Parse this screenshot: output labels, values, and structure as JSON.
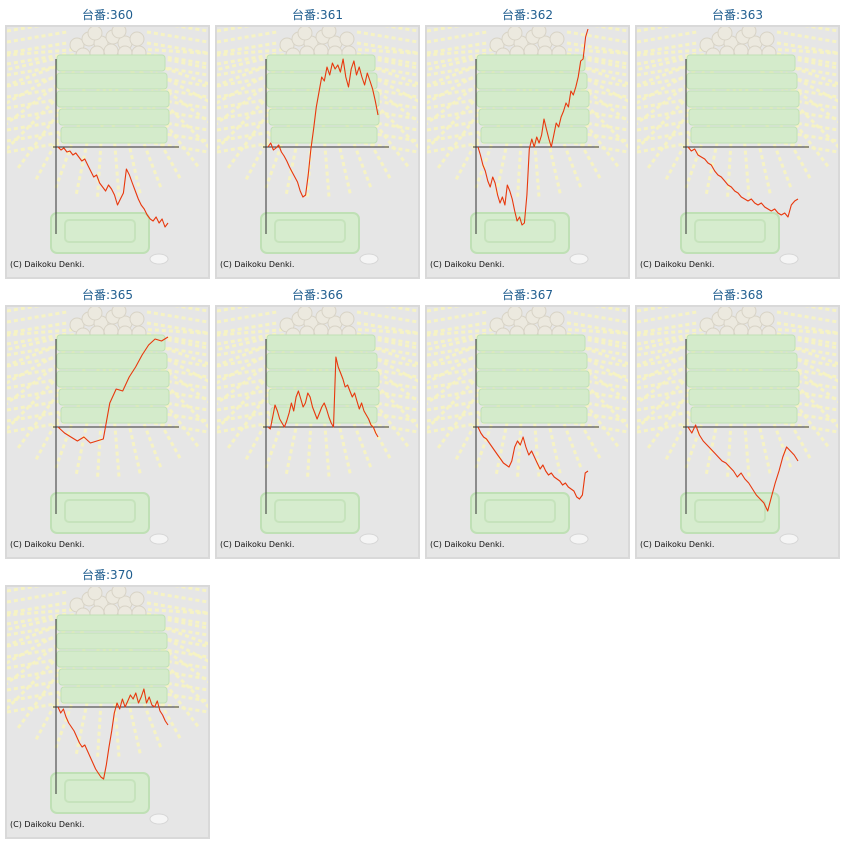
{
  "colors": {
    "title": "#1f5d8f",
    "line": "#e8380d",
    "axis": "#333333",
    "background": "#e6e6e6"
  },
  "copyright": "(C) Daikoku Denki.",
  "chart_data": [
    {
      "type": "line",
      "title": "台番:360",
      "y": [
        0,
        3,
        1,
        5,
        4,
        8,
        6,
        10,
        14,
        12,
        18,
        24,
        30,
        28,
        36,
        40,
        44,
        38,
        42,
        48,
        58,
        52,
        46,
        22,
        28,
        36,
        44,
        52,
        58,
        62,
        68,
        72,
        74,
        70,
        76,
        72,
        80,
        76
      ]
    },
    {
      "type": "line",
      "title": "台番:361",
      "y": [
        0,
        -4,
        3,
        1,
        -2,
        5,
        9,
        14,
        20,
        25,
        30,
        35,
        44,
        50,
        48,
        28,
        2,
        -18,
        -40,
        -55,
        -70,
        -66,
        -80,
        -72,
        -84,
        -78,
        -82,
        -75,
        -88,
        -70,
        -60,
        -78,
        -86,
        -72,
        -80,
        -70,
        -62,
        -74,
        -66,
        -58,
        -46,
        -32
      ]
    },
    {
      "type": "line",
      "title": "台番:362",
      "y": [
        0,
        8,
        18,
        24,
        34,
        40,
        30,
        36,
        48,
        56,
        50,
        58,
        38,
        44,
        52,
        64,
        74,
        70,
        78,
        76,
        48,
        2,
        -8,
        0,
        -10,
        -4,
        -12,
        -28,
        -18,
        -8,
        0,
        -12,
        -24,
        -20,
        -30,
        -36,
        -44,
        -40,
        -56,
        -52,
        -60,
        -70,
        -86,
        -88,
        -110,
        -120
      ]
    },
    {
      "type": "line",
      "title": "台番:363",
      "y": [
        0,
        4,
        2,
        8,
        10,
        12,
        16,
        18,
        24,
        28,
        30,
        34,
        38,
        40,
        44,
        46,
        50,
        52,
        54,
        52,
        56,
        58,
        56,
        60,
        62,
        64,
        62,
        66,
        68,
        66,
        70,
        58,
        54,
        52
      ]
    },
    {
      "type": "line",
      "title": "台番:365",
      "y": [
        0,
        6,
        10,
        14,
        10,
        16,
        14,
        12,
        -24,
        -38,
        -36,
        -50,
        -60,
        -72,
        -82,
        -88,
        -86,
        -90
      ]
    },
    {
      "type": "line",
      "title": "台番:366",
      "y": [
        0,
        2,
        -10,
        -22,
        -16,
        -8,
        -4,
        0,
        -6,
        -14,
        -24,
        -16,
        -30,
        -36,
        -28,
        -20,
        -24,
        -34,
        -30,
        -20,
        -14,
        -8,
        -14,
        -20,
        -24,
        -18,
        -10,
        -4,
        0,
        -70,
        -60,
        -54,
        -48,
        -40,
        -42,
        -36,
        -30,
        -34,
        -26,
        -18,
        -24,
        -16,
        -12,
        -8,
        -2,
        0,
        6,
        10
      ]
    },
    {
      "type": "line",
      "title": "台番:367",
      "y": [
        0,
        6,
        10,
        12,
        16,
        20,
        24,
        28,
        32,
        36,
        38,
        40,
        34,
        20,
        14,
        18,
        10,
        20,
        28,
        24,
        30,
        36,
        42,
        38,
        44,
        48,
        46,
        50,
        52,
        54,
        58,
        56,
        60,
        62,
        64,
        70,
        72,
        68,
        46,
        44
      ]
    },
    {
      "type": "line",
      "title": "台番:368",
      "y": [
        0,
        6,
        -2,
        8,
        14,
        18,
        22,
        26,
        30,
        34,
        36,
        40,
        44,
        50,
        46,
        52,
        56,
        62,
        68,
        72,
        76,
        84,
        70,
        56,
        44,
        30,
        20,
        24,
        28,
        34
      ]
    },
    {
      "type": "line",
      "title": "台番:370",
      "y": [
        0,
        6,
        2,
        10,
        16,
        20,
        24,
        30,
        36,
        40,
        38,
        44,
        50,
        56,
        62,
        66,
        70,
        72,
        58,
        40,
        24,
        6,
        -4,
        2,
        -8,
        0,
        -6,
        -12,
        -8,
        -14,
        -4,
        -10,
        -18,
        -4,
        -10,
        -2,
        0,
        -6,
        4,
        8,
        14,
        18
      ]
    }
  ]
}
